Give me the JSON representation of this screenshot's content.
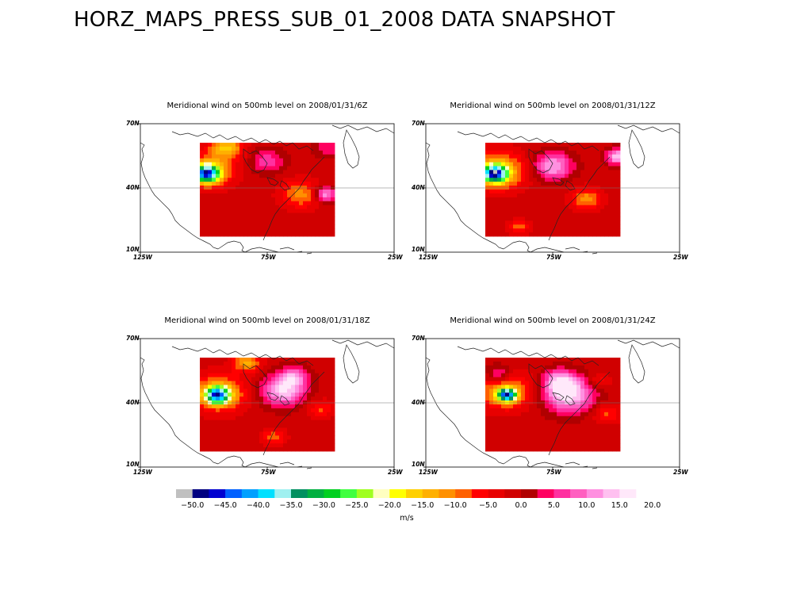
{
  "page": {
    "title": "HORZ_MAPS_PRESS_SUB_01_2008 DATA SNAPSHOT"
  },
  "axes": {
    "lat_top": "70N",
    "lat_mid": "40N",
    "lat_bot": "10N",
    "lon_left": "125W",
    "lon_mid": "75W",
    "lon_right": "25W"
  },
  "panels": [
    {
      "title": "Meridional wind on  500mb level on 2008/01/31/6Z",
      "time": "6Z"
    },
    {
      "title": "Meridional wind on  500mb level on 2008/01/31/12Z",
      "time": "12Z"
    },
    {
      "title": "Meridional wind on  500mb level on 2008/01/31/18Z",
      "time": "18Z"
    },
    {
      "title": "Meridional wind on  500mb level on 2008/01/31/24Z",
      "time": "24Z"
    }
  ],
  "colorbar": {
    "units": "m/s",
    "labels": [
      "-50.0",
      "-45.0",
      "-40.0",
      "-35.0",
      "-30.0",
      "-25.0",
      "-20.0",
      "-15.0",
      "-10.0",
      "-5.0",
      "0.0",
      "5.0",
      "10.0",
      "15.0",
      "20.0"
    ],
    "colors": [
      "#c0c0c0",
      "#000080",
      "#0000d0",
      "#0060ff",
      "#00a0ff",
      "#00e0ff",
      "#a0f0f0",
      "#009060",
      "#00b040",
      "#00d020",
      "#40ff40",
      "#a0ff20",
      "#ffffc0",
      "#ffff00",
      "#ffd000",
      "#ffb000",
      "#ff9000",
      "#ff6000",
      "#ff0000",
      "#e80000",
      "#d00000",
      "#b00000",
      "#ff0060",
      "#ff30a0",
      "#ff60c0",
      "#ff90e0",
      "#ffc0f0",
      "#ffe8fa"
    ]
  }
}
